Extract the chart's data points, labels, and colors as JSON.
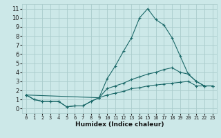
{
  "xlabel": "Humidex (Indice chaleur)",
  "ylabel": "",
  "bg_color": "#cce8e8",
  "grid_color": "#aacccc",
  "line_color": "#1a6868",
  "xlim": [
    -0.5,
    23.5
  ],
  "ylim": [
    -0.5,
    11.5
  ],
  "xticks": [
    0,
    1,
    2,
    3,
    4,
    5,
    6,
    7,
    8,
    9,
    10,
    11,
    12,
    13,
    14,
    15,
    16,
    17,
    18,
    19,
    20,
    21,
    22,
    23
  ],
  "yticks": [
    0,
    1,
    2,
    3,
    4,
    5,
    6,
    7,
    8,
    9,
    10,
    11
  ],
  "line1_x": [
    0,
    1,
    2,
    3,
    4,
    5,
    6,
    7,
    8,
    9,
    10,
    11,
    12,
    13,
    14,
    15,
    16,
    17,
    18,
    19,
    20,
    21,
    22,
    23
  ],
  "line1_y": [
    1.5,
    1.0,
    0.8,
    0.8,
    0.8,
    0.2,
    0.3,
    0.3,
    0.8,
    1.2,
    3.3,
    4.7,
    6.3,
    7.8,
    10.0,
    11.0,
    9.8,
    9.2,
    7.8,
    5.8,
    3.8,
    3.0,
    2.5,
    2.5
  ],
  "line2_x": [
    0,
    9,
    10,
    11,
    12,
    13,
    14,
    15,
    16,
    17,
    18,
    19,
    20,
    21,
    22,
    23
  ],
  "line2_y": [
    1.5,
    1.2,
    2.2,
    2.5,
    2.8,
    3.2,
    3.5,
    3.8,
    4.0,
    4.3,
    4.5,
    4.0,
    3.8,
    3.0,
    2.5,
    2.5
  ],
  "line3_x": [
    0,
    1,
    2,
    3,
    4,
    5,
    6,
    7,
    8,
    9,
    10,
    11,
    12,
    13,
    14,
    15,
    16,
    17,
    18,
    19,
    20,
    21,
    22,
    23
  ],
  "line3_y": [
    1.5,
    1.0,
    0.8,
    0.8,
    0.8,
    0.2,
    0.3,
    0.3,
    0.8,
    1.2,
    1.5,
    1.7,
    1.9,
    2.2,
    2.3,
    2.5,
    2.6,
    2.7,
    2.8,
    2.9,
    3.0,
    2.5,
    2.5,
    2.5
  ]
}
